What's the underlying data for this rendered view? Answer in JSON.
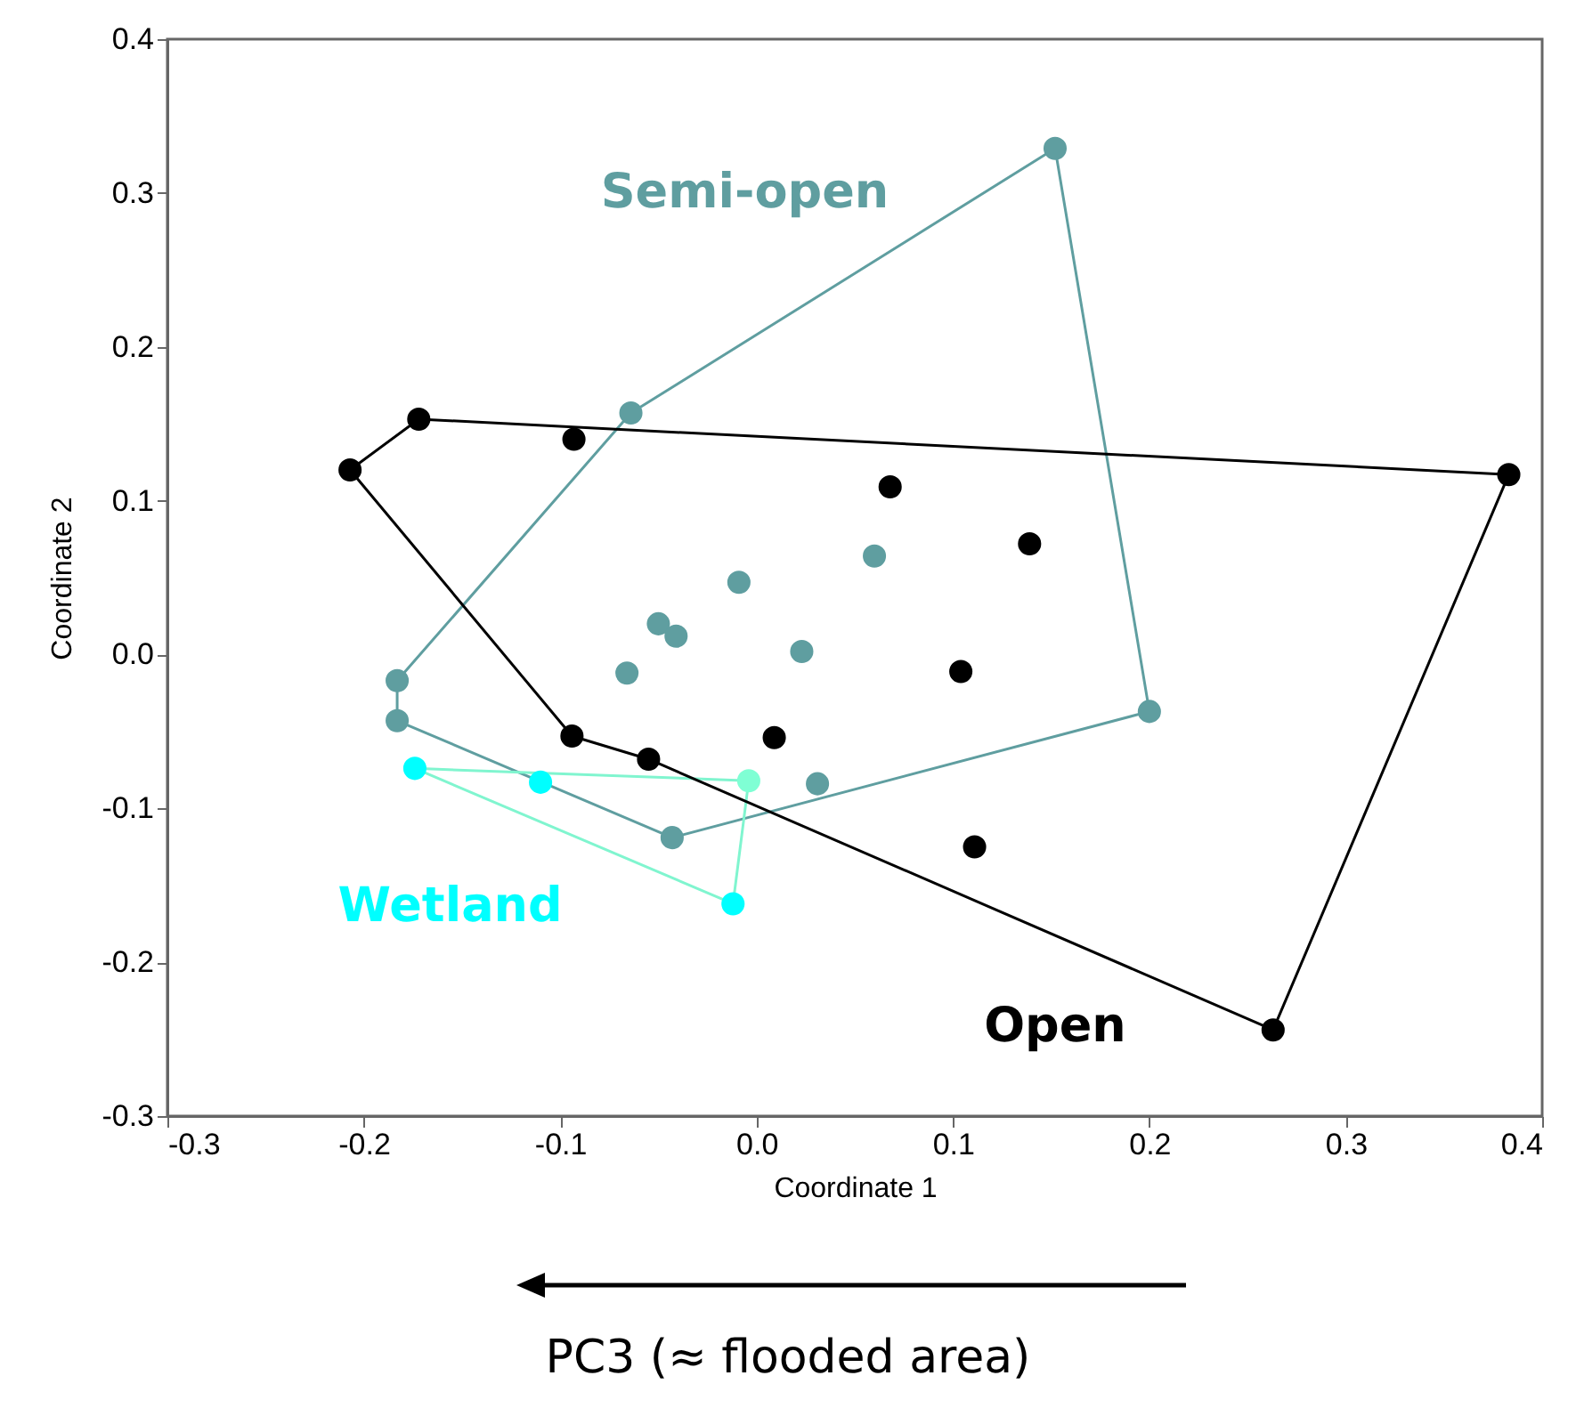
{
  "chart_data": {
    "type": "scatter",
    "xlabel": "Coordinate 1",
    "ylabel": "Coordinate 2",
    "xlim": [
      -0.3,
      0.4
    ],
    "ylim": [
      -0.3,
      0.4
    ],
    "xticks": [
      -0.3,
      -0.2,
      -0.1,
      {
        "value": 0,
        "label": "0.0"
      },
      0.1,
      0.2,
      0.3,
      0.4
    ],
    "yticks": [
      -0.3,
      -0.2,
      -0.1,
      {
        "value": 0,
        "label": "0.0"
      },
      0.1,
      0.2,
      0.3,
      0.4
    ],
    "grid": false,
    "marker": "circle",
    "annotations": [
      "PC3 (≈ flooded area)"
    ],
    "series": [
      {
        "type": "line",
        "marker": "none",
        "color": "#5f9ea0",
        "x": [
          -0.183,
          -0.064,
          0.152,
          0.2
        ],
        "values": [
          -0.017,
          0.157,
          0.329,
          -0.037
        ]
      },
      {
        "type": "line",
        "marker": "none",
        "color": "#5f9ea0",
        "x": [
          -0.183,
          -0.183,
          -0.043,
          0.2
        ],
        "values": [
          -0.017,
          -0.043,
          -0.119,
          -0.037
        ]
      },
      {
        "type": "line",
        "marker": "none",
        "color": "#80f5cf",
        "x": [
          -0.174,
          -0.004
        ],
        "values": [
          -0.074,
          -0.082
        ]
      },
      {
        "type": "line",
        "marker": "none",
        "color": "#80f5cf",
        "x": [
          -0.174,
          -0.012,
          -0.004
        ],
        "values": [
          -0.074,
          -0.162,
          -0.082
        ]
      },
      {
        "type": "line",
        "marker": "none",
        "color": "#000000",
        "x": [
          -0.207,
          -0.172,
          0.383
        ],
        "values": [
          0.12,
          0.153,
          0.117
        ]
      },
      {
        "type": "line",
        "marker": "none",
        "color": "#000000",
        "x": [
          -0.207,
          -0.094,
          -0.055,
          0.263,
          0.383
        ],
        "values": [
          0.12,
          -0.053,
          -0.068,
          -0.244,
          0.117
        ]
      },
      {
        "name": "Semi-open",
        "color": "#5f9ea0",
        "x": [
          0.152,
          -0.064,
          -0.183,
          -0.183,
          -0.043,
          0.2,
          0.031,
          -0.009,
          -0.05,
          -0.041,
          -0.066,
          0.023,
          0.06
        ],
        "values": [
          0.329,
          0.157,
          -0.017,
          -0.043,
          -0.119,
          -0.037,
          -0.084,
          0.047,
          0.02,
          0.012,
          -0.012,
          0.002,
          0.064
        ]
      },
      {
        "name": "Wetland",
        "color": "#00ffff",
        "colors": [
          "#00ffff",
          "#00ffff",
          "#7fffd4",
          "#00ffff"
        ],
        "x": [
          -0.174,
          -0.11,
          -0.004,
          -0.012
        ],
        "values": [
          -0.074,
          -0.083,
          -0.082,
          -0.162
        ]
      },
      {
        "name": "Open",
        "color": "#000000",
        "x": [
          -0.207,
          -0.172,
          -0.093,
          0.068,
          0.139,
          0.104,
          -0.094,
          -0.055,
          0.009,
          0.111,
          0.263,
          0.383
        ],
        "values": [
          0.12,
          0.153,
          0.14,
          0.109,
          0.072,
          -0.011,
          -0.053,
          -0.068,
          -0.054,
          -0.125,
          -0.244,
          0.117
        ]
      }
    ]
  }
}
